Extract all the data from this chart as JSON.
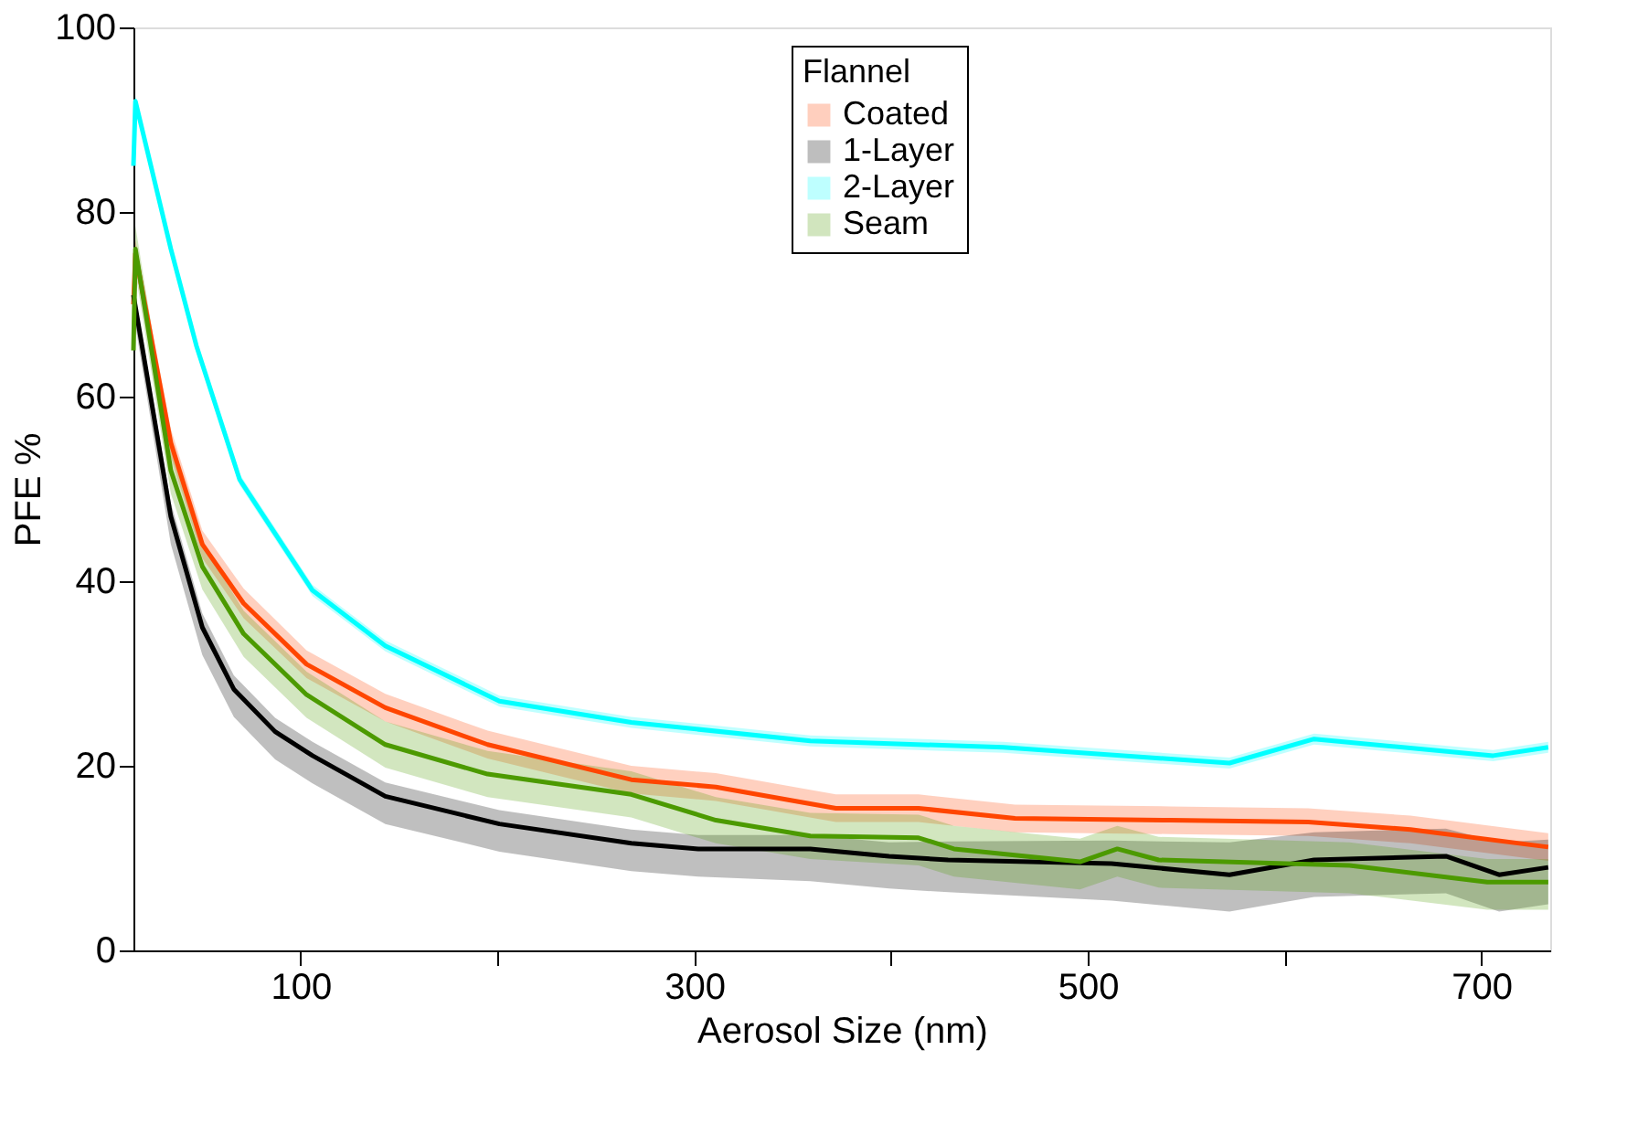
{
  "chart_data": {
    "type": "line",
    "xlabel": "Aerosol Size (nm)",
    "ylabel": "PFE %",
    "legend_title": "Flannel",
    "legend": "top",
    "grid": false,
    "marker": "none",
    "line_style": "solid",
    "xlim": [
      15,
      735
    ],
    "ylim": [
      0,
      100
    ],
    "xticks": [
      100,
      {
        "value": 200,
        "label": null
      },
      300,
      {
        "value": 400,
        "label": null
      },
      500,
      {
        "value": 600,
        "label": null
      },
      700
    ],
    "yticks": [
      0,
      20,
      40,
      60,
      80,
      100
    ],
    "series": [
      {
        "name": "Coated",
        "color": "#ff4500",
        "x": [
          15,
          16,
          34,
          50,
          71,
          103,
          143,
          195,
          268,
          311,
          372,
          414,
          463,
          542,
          612,
          664,
          734
        ],
        "values": [
          70,
          75.5,
          55,
          44,
          37.6,
          31,
          26.3,
          22.3,
          18.5,
          17.7,
          15.4,
          15.4,
          14.3,
          14.1,
          13.9,
          13.1,
          11.2
        ],
        "lower": [
          68.5,
          74,
          53.5,
          42.5,
          36,
          29.5,
          24.8,
          20.8,
          17,
          16.2,
          13.9,
          13.9,
          12.8,
          12.6,
          12.4,
          11.6,
          9.7
        ],
        "upper": [
          71.5,
          77,
          56.5,
          45.5,
          39.2,
          32.5,
          27.8,
          23.8,
          20,
          19.2,
          16.9,
          16.9,
          15.8,
          15.6,
          15.4,
          14.6,
          12.7
        ]
      },
      {
        "name": "1-Layer",
        "color": "#000000",
        "x": [
          15,
          34,
          50,
          66,
          87,
          106,
          143,
          201,
          268,
          302,
          359,
          399,
          429,
          512,
          572,
          615,
          682,
          709,
          734
        ],
        "values": [
          71,
          47,
          35,
          28.3,
          23.7,
          21.1,
          16.7,
          13.7,
          11.6,
          11,
          11,
          10.2,
          9.8,
          9.4,
          8.2,
          9.8,
          10.2,
          8.2,
          9
        ],
        "lower": [
          69,
          44,
          32,
          25.3,
          20.7,
          18.1,
          13.7,
          10.7,
          8.6,
          8,
          7.5,
          6.7,
          6.3,
          5.4,
          4.2,
          5.8,
          6.2,
          4.2,
          5
        ],
        "upper": [
          72,
          48.5,
          36.5,
          29.8,
          25.2,
          22.6,
          18.2,
          15.2,
          13.1,
          12.5,
          12.5,
          11.7,
          11.8,
          11.9,
          11.7,
          12.8,
          13.2,
          11.7,
          12
        ]
      },
      {
        "name": "2-Layer",
        "color": "#00ffff",
        "x": [
          15,
          16,
          34,
          47,
          69,
          106,
          143,
          201,
          268,
          359,
          457,
          572,
          615,
          706,
          734
        ],
        "values": [
          85,
          92,
          76,
          65.5,
          51,
          39,
          33,
          27,
          24.7,
          22.7,
          22,
          20.3,
          22.9,
          21.1,
          22
        ],
        "lower": [
          84.4,
          91.4,
          75.4,
          64.9,
          50.4,
          38.4,
          32.4,
          26.4,
          24.1,
          22.1,
          21.4,
          19.7,
          22.3,
          20.5,
          21.4
        ],
        "upper": [
          85.6,
          92.6,
          76.6,
          66.1,
          51.6,
          39.6,
          33.6,
          27.6,
          25.3,
          23.3,
          22.6,
          20.9,
          23.5,
          21.7,
          22.6
        ]
      },
      {
        "name": "Seam",
        "color": "#4c9a00",
        "x": [
          15,
          16,
          34,
          50,
          71,
          103,
          143,
          195,
          268,
          311,
          359,
          414,
          432,
          496,
          515,
          536,
          633,
          703,
          734
        ],
        "values": [
          65,
          76,
          52,
          41.6,
          34.3,
          27.7,
          22.3,
          19.1,
          16.9,
          14.1,
          12.4,
          12.2,
          11,
          9.6,
          11,
          9.8,
          9.2,
          7.4,
          7.4
        ],
        "lower": [
          63,
          73.5,
          49.5,
          39.1,
          31.8,
          25.2,
          19.8,
          16.6,
          14.4,
          11.6,
          9.9,
          9.2,
          8,
          6.6,
          8,
          6.8,
          6.2,
          4.4,
          4.4
        ],
        "upper": [
          67,
          78.5,
          54.5,
          44.1,
          36.8,
          30.2,
          24.8,
          21.6,
          19.4,
          16.6,
          14.9,
          14.7,
          13.5,
          12.1,
          13.5,
          12.3,
          11.7,
          9.9,
          9.9
        ]
      }
    ]
  }
}
